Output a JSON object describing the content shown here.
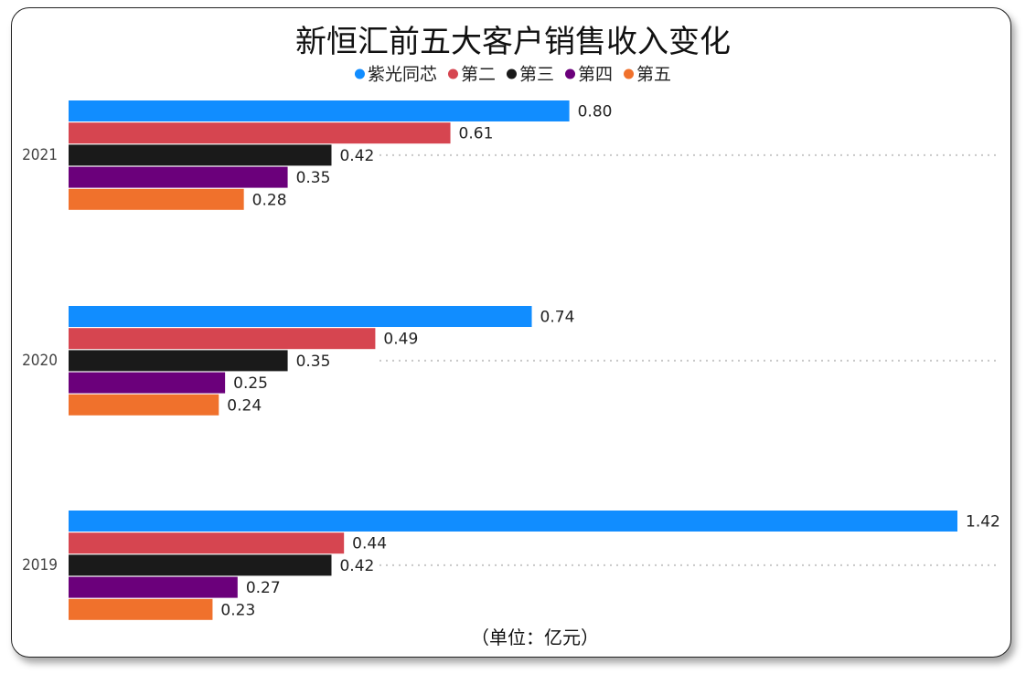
{
  "chart_data": {
    "type": "bar",
    "orientation": "horizontal",
    "title": "新恒汇前五大客户销售收入变化",
    "unit_note": "（单位：亿元）",
    "categories": [
      "2021",
      "2020",
      "2019"
    ],
    "series": [
      {
        "name": "紫光同芯",
        "color": "#118DFF",
        "values": [
          0.8,
          0.74,
          1.42
        ]
      },
      {
        "name": "第二",
        "color": "#D64550",
        "values": [
          0.61,
          0.49,
          0.44
        ]
      },
      {
        "name": "第三",
        "color": "#1A1A1A",
        "values": [
          0.42,
          0.35,
          0.42
        ]
      },
      {
        "name": "第四",
        "color": "#6B007B",
        "values": [
          0.35,
          0.25,
          0.27
        ]
      },
      {
        "name": "第五",
        "color": "#F0712C",
        "values": [
          0.28,
          0.24,
          0.23
        ]
      }
    ],
    "value_labels": [
      [
        "0.80",
        "0.61",
        "0.42",
        "0.35",
        "0.28"
      ],
      [
        "0.74",
        "0.49",
        "0.35",
        "0.25",
        "0.24"
      ],
      [
        "1.42",
        "0.44",
        "0.42",
        "0.27",
        "0.23"
      ]
    ],
    "xlim": [
      0,
      1.42
    ],
    "legend_position": "top",
    "grid": "dotted category lines"
  }
}
